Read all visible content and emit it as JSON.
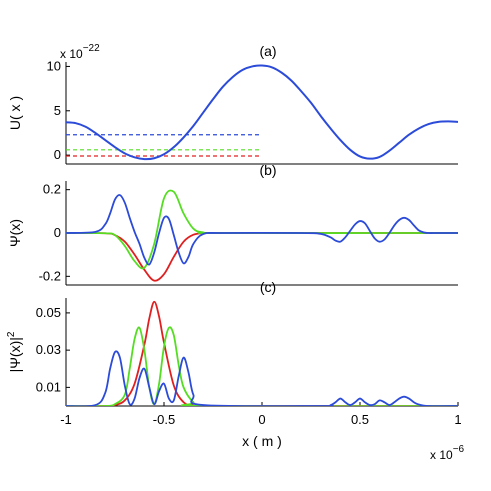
{
  "chart_data": [
    {
      "panel_label": "(a)",
      "type": "line",
      "ylabel": "U( x )",
      "y_multiplier": "x 10",
      "y_exponent": "−22",
      "xlim": [
        -1,
        1
      ],
      "ylim": [
        -1,
        10.5
      ],
      "yticks": [
        "0",
        "5",
        "10"
      ],
      "ytick_values": [
        0,
        5,
        10
      ],
      "grid": false,
      "potential": {
        "color": "#2b4bd8",
        "x": [
          -1.0,
          -0.95,
          -0.9,
          -0.85,
          -0.8,
          -0.75,
          -0.7,
          -0.65,
          -0.6,
          -0.55,
          -0.5,
          -0.45,
          -0.4,
          -0.35,
          -0.3,
          -0.25,
          -0.2,
          -0.15,
          -0.1,
          -0.05,
          0.0,
          0.05,
          0.1,
          0.15,
          0.2,
          0.25,
          0.3,
          0.35,
          0.4,
          0.45,
          0.5,
          0.55,
          0.6,
          0.65,
          0.7,
          0.75,
          0.8,
          0.85,
          0.9,
          0.95,
          1.0
        ],
        "y": [
          3.7,
          3.6,
          3.2,
          2.5,
          1.7,
          0.9,
          0.2,
          -0.25,
          -0.45,
          -0.35,
          0.1,
          0.9,
          2.0,
          3.3,
          4.8,
          6.3,
          7.7,
          8.8,
          9.6,
          10.0,
          10.1,
          9.9,
          9.3,
          8.4,
          7.2,
          5.9,
          4.4,
          3.0,
          1.7,
          0.6,
          -0.15,
          -0.4,
          -0.2,
          0.5,
          1.4,
          2.3,
          3.0,
          3.5,
          3.75,
          3.8,
          3.75
        ]
      },
      "energy_levels": [
        {
          "color": "#e02020",
          "y": -0.1,
          "x": [
            -1,
            1
          ]
        },
        {
          "color": "#55dd22",
          "y": 0.6,
          "x": [
            -1,
            1
          ]
        },
        {
          "color": "#2b4bd8",
          "y": 2.3,
          "x": [
            -1,
            1
          ]
        }
      ]
    },
    {
      "panel_label": "(b)",
      "type": "line",
      "ylabel": "Ψ(x)",
      "xlim": [
        -1,
        1
      ],
      "ylim": [
        -0.24,
        0.24
      ],
      "yticks": [
        "0.2",
        "0",
        "-0.2"
      ],
      "ytick_values": [
        0.2,
        0,
        -0.2
      ],
      "grid": false,
      "series": [
        {
          "color": "#e02020",
          "x": [
            -1.0,
            -0.8,
            -0.75,
            -0.7,
            -0.65,
            -0.6,
            -0.55,
            -0.5,
            -0.45,
            -0.4,
            -0.35,
            -0.3,
            -0.2,
            1.0
          ],
          "y": [
            0,
            -0.001,
            -0.01,
            -0.04,
            -0.1,
            -0.17,
            -0.22,
            -0.19,
            -0.11,
            -0.04,
            -0.008,
            -0.001,
            0,
            0
          ]
        },
        {
          "color": "#55dd22",
          "x": [
            -1.0,
            -0.8,
            -0.75,
            -0.7,
            -0.65,
            -0.6,
            -0.55,
            -0.5,
            -0.45,
            -0.4,
            -0.35,
            -0.3,
            -0.2,
            1.0
          ],
          "y": [
            0,
            -0.001,
            -0.01,
            -0.06,
            -0.13,
            -0.16,
            -0.05,
            0.16,
            0.19,
            0.09,
            0.02,
            0.003,
            0,
            0
          ]
        },
        {
          "color": "#2b4bd8",
          "x": [
            -1.0,
            -0.85,
            -0.8,
            -0.775,
            -0.75,
            -0.725,
            -0.7,
            -0.675,
            -0.65,
            -0.625,
            -0.6,
            -0.575,
            -0.55,
            -0.525,
            -0.5,
            -0.475,
            -0.45,
            -0.425,
            -0.4,
            -0.375,
            -0.35,
            -0.3,
            -0.2,
            0.2,
            0.3,
            0.35,
            0.375,
            0.4,
            0.425,
            0.45,
            0.475,
            0.5,
            0.525,
            0.55,
            0.575,
            0.6,
            0.625,
            0.65,
            0.675,
            0.7,
            0.725,
            0.75,
            0.775,
            0.8,
            0.825,
            0.85,
            0.9,
            1.0
          ],
          "y": [
            0,
            0.005,
            0.04,
            0.09,
            0.155,
            0.175,
            0.14,
            0.07,
            0.005,
            -0.05,
            -0.115,
            -0.145,
            -0.09,
            0.0,
            0.07,
            0.065,
            -0.01,
            -0.09,
            -0.14,
            -0.11,
            -0.05,
            -0.005,
            0,
            0,
            -0.004,
            -0.02,
            -0.035,
            -0.04,
            -0.02,
            0.01,
            0.04,
            0.055,
            0.045,
            0.01,
            -0.025,
            -0.04,
            -0.03,
            0.0,
            0.035,
            0.06,
            0.07,
            0.06,
            0.035,
            0.012,
            0.003,
            0.0,
            0,
            0
          ]
        }
      ]
    },
    {
      "panel_label": "(c)",
      "type": "line",
      "ylabel": "|Ψ(x)|",
      "ylabel_superscript": "2",
      "xlabel": "x ( m )",
      "x_multiplier": "x 10",
      "x_exponent": "−6",
      "xlim": [
        -1,
        1
      ],
      "ylim": [
        0,
        0.058
      ],
      "xticks": [
        "-1",
        "-0.5",
        "0",
        "0.5",
        "1"
      ],
      "xtick_values": [
        -1,
        -0.5,
        0,
        0.5,
        1
      ],
      "yticks": [
        "0.05",
        "0.03",
        "0.01"
      ],
      "ytick_values": [
        0.05,
        0.03,
        0.01
      ],
      "grid": false,
      "series": [
        {
          "color": "#e02020",
          "x": [
            -1.0,
            -0.8,
            -0.75,
            -0.7,
            -0.65,
            -0.6,
            -0.575,
            -0.55,
            -0.525,
            -0.5,
            -0.45,
            -0.4,
            -0.35,
            -0.3,
            1.0
          ],
          "y": [
            0,
            0,
            0.0005,
            0.003,
            0.012,
            0.033,
            0.047,
            0.056,
            0.048,
            0.034,
            0.011,
            0.002,
            0.0002,
            0,
            0
          ]
        },
        {
          "color": "#55dd22",
          "x": [
            -1.0,
            -0.8,
            -0.75,
            -0.7,
            -0.675,
            -0.65,
            -0.625,
            -0.6,
            -0.575,
            -0.55,
            -0.525,
            -0.5,
            -0.475,
            -0.45,
            -0.425,
            -0.4,
            -0.35,
            -0.3,
            1.0
          ],
          "y": [
            0,
            0,
            0.001,
            0.006,
            0.02,
            0.036,
            0.042,
            0.03,
            0.01,
            0.001,
            0.012,
            0.032,
            0.042,
            0.038,
            0.022,
            0.01,
            0.002,
            0,
            0
          ]
        },
        {
          "color": "#2b4bd8",
          "x": [
            -1.0,
            -0.85,
            -0.8,
            -0.775,
            -0.75,
            -0.725,
            -0.7,
            -0.675,
            -0.65,
            -0.625,
            -0.6,
            -0.575,
            -0.55,
            -0.525,
            -0.5,
            -0.475,
            -0.45,
            -0.425,
            -0.4,
            -0.375,
            -0.35,
            -0.3,
            0.3,
            0.35,
            0.375,
            0.4,
            0.425,
            0.45,
            0.475,
            0.5,
            0.525,
            0.55,
            0.575,
            0.6,
            0.625,
            0.65,
            0.675,
            0.7,
            0.725,
            0.75,
            0.775,
            0.8,
            0.85,
            1.0
          ],
          "y": [
            0,
            0.0005,
            0.007,
            0.02,
            0.029,
            0.026,
            0.011,
            0.001,
            0.004,
            0.015,
            0.02,
            0.01,
            0.001,
            0.008,
            0.012,
            0.004,
            0.003,
            0.016,
            0.026,
            0.018,
            0.006,
            0.0005,
            0,
            0.0005,
            0.002,
            0.004,
            0.002,
            0.0005,
            0.002,
            0.004,
            0.002,
            0.0005,
            0.001,
            0.003,
            0.002,
            0.0005,
            0.002,
            0.004,
            0.005,
            0.004,
            0.002,
            0.0008,
            0,
            0
          ]
        }
      ]
    }
  ]
}
